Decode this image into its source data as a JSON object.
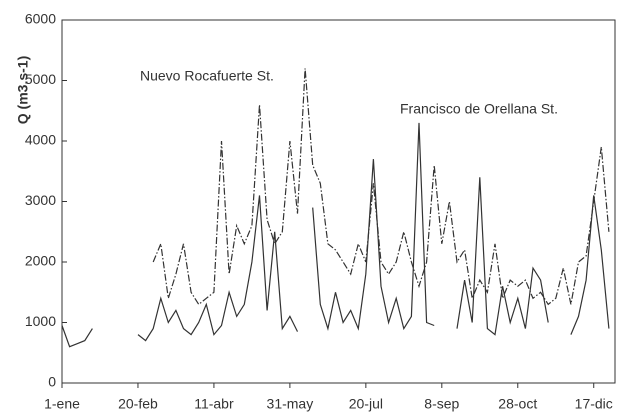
{
  "chart_data": {
    "type": "line",
    "y_label": "Q (m3.s-1)",
    "annotations": [
      "Nuevo Rocafuerte St.",
      "Francisco de Orellana St."
    ],
    "x": [
      1,
      6,
      11,
      16,
      21,
      26,
      31,
      36,
      41,
      46,
      51,
      56,
      61,
      66,
      71,
      76,
      81,
      86,
      91,
      96,
      101,
      106,
      111,
      116,
      121,
      126,
      131,
      136,
      141,
      146,
      151,
      156,
      161,
      166,
      171,
      176,
      181,
      186,
      191,
      196,
      201,
      206,
      211,
      216,
      221,
      226,
      231,
      236,
      241,
      246,
      251,
      256,
      261,
      266,
      271,
      276,
      281,
      286,
      291,
      296,
      301,
      306,
      311,
      316,
      321,
      326,
      331,
      336,
      341,
      346,
      351,
      356,
      361
    ],
    "series": [
      {
        "name": "Francisco de Orellana St.",
        "color": "#333333",
        "linestyle": "solid",
        "values": [
          950,
          600,
          650,
          700,
          900,
          null,
          null,
          null,
          null,
          null,
          800,
          700,
          900,
          1400,
          1000,
          1200,
          900,
          800,
          1000,
          1300,
          800,
          950,
          1500,
          1100,
          1300,
          2000,
          3100,
          1200,
          2500,
          900,
          1100,
          850,
          null,
          2900,
          1300,
          900,
          1500,
          1000,
          1200,
          900,
          1800,
          3700,
          1600,
          1000,
          1400,
          900,
          1100,
          4300,
          1000,
          950,
          null,
          null,
          900,
          1700,
          1000,
          3400,
          900,
          800,
          1600,
          1000,
          1400,
          900,
          1900,
          1700,
          1000,
          null,
          null,
          800,
          1100,
          1700,
          3100,
          2200,
          900
        ]
      },
      {
        "name": "Nuevo Rocafuerte St.",
        "color": "#333333",
        "linestyle": "dashdot",
        "values": [
          null,
          null,
          null,
          null,
          null,
          null,
          null,
          null,
          null,
          null,
          null,
          null,
          2000,
          2300,
          1400,
          1800,
          2300,
          1500,
          1300,
          1400,
          1500,
          4000,
          1800,
          2600,
          2300,
          2600,
          4600,
          2700,
          2300,
          2500,
          4000,
          2800,
          5200,
          3600,
          3300,
          2300,
          2200,
          2000,
          1800,
          2300,
          2000,
          3300,
          2000,
          1800,
          2000,
          2500,
          2000,
          1600,
          2000,
          3600,
          2300,
          3000,
          2000,
          2200,
          1400,
          1700,
          1500,
          2300,
          1400,
          1700,
          1600,
          1700,
          1400,
          1500,
          1300,
          1400,
          1900,
          1300,
          2000,
          2100,
          3000,
          3900,
          2500
        ]
      }
    ],
    "xlim": [
      1,
      365
    ],
    "xticks": [
      {
        "value": 1,
        "label": "1-ene"
      },
      {
        "value": 51,
        "label": "20-feb"
      },
      {
        "value": 101,
        "label": "11-abr"
      },
      {
        "value": 151,
        "label": "31-may"
      },
      {
        "value": 201,
        "label": "20-jul"
      },
      {
        "value": 251,
        "label": "8-sep"
      },
      {
        "value": 301,
        "label": "28-oct"
      },
      {
        "value": 351,
        "label": "17-dic"
      }
    ],
    "ylim": [
      0,
      6000
    ],
    "yticks": [
      0,
      1000,
      2000,
      3000,
      4000,
      5000,
      6000
    ],
    "grid": false
  }
}
